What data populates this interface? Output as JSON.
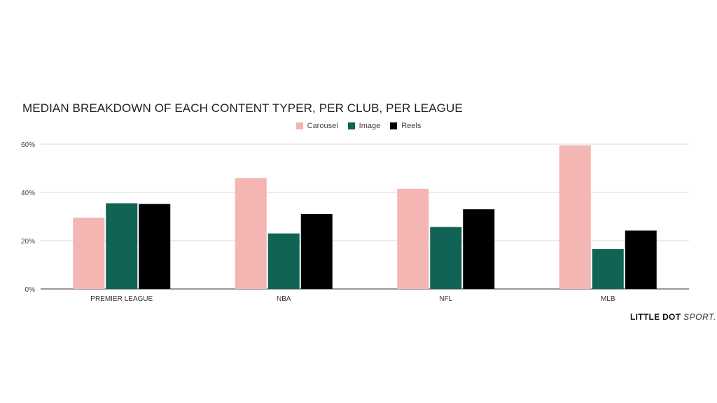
{
  "chart_data": {
    "type": "bar",
    "title": "MEDIAN BREAKDOWN OF EACH CONTENT TYPER, PER CLUB, PER LEAGUE",
    "xlabel": "",
    "ylabel": "",
    "categories": [
      "PREMIER LEAGUE",
      "NBA",
      "NFL",
      "MLB"
    ],
    "series": [
      {
        "name": "Carousel",
        "color": "#f4b6b2",
        "values": [
          29.5,
          46,
          41.5,
          59.5
        ]
      },
      {
        "name": "Image",
        "color": "#116355",
        "values": [
          35.5,
          23,
          25.7,
          16.5
        ]
      },
      {
        "name": "Reels",
        "color": "#000000",
        "values": [
          35.2,
          31,
          33,
          24.2
        ]
      }
    ],
    "ylim": [
      0,
      60
    ],
    "yticks": [
      "0%",
      "20%",
      "40%",
      "60%"
    ],
    "ytick_values": [
      0,
      20,
      40,
      60
    ],
    "grid": true,
    "legend_position": "top-center"
  },
  "brand": {
    "bold": "LITTLE DOT",
    "light": "SPORT."
  }
}
